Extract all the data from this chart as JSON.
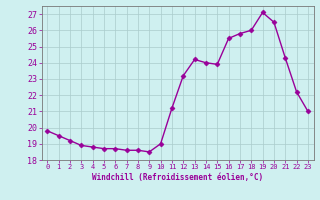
{
  "x": [
    0,
    1,
    2,
    3,
    4,
    5,
    6,
    7,
    8,
    9,
    10,
    11,
    12,
    13,
    14,
    15,
    16,
    17,
    18,
    19,
    20,
    21,
    22,
    23
  ],
  "y": [
    19.8,
    19.5,
    19.2,
    18.9,
    18.8,
    18.7,
    18.7,
    18.6,
    18.6,
    18.5,
    19.0,
    21.2,
    23.2,
    24.2,
    24.0,
    23.9,
    25.5,
    25.8,
    26.0,
    27.1,
    26.5,
    24.3,
    22.2,
    21.0
  ],
  "line_color": "#990099",
  "marker": "D",
  "markersize": 2.5,
  "linewidth": 1.0,
  "bg_color": "#cff0f0",
  "grid_color": "#aacccc",
  "xlabel": "Windchill (Refroidissement éolien,°C)",
  "xlim": [
    -0.5,
    23.5
  ],
  "ylim": [
    18,
    27.5
  ],
  "yticks": [
    18,
    19,
    20,
    21,
    22,
    23,
    24,
    25,
    26,
    27
  ],
  "xticks": [
    0,
    1,
    2,
    3,
    4,
    5,
    6,
    7,
    8,
    9,
    10,
    11,
    12,
    13,
    14,
    15,
    16,
    17,
    18,
    19,
    20,
    21,
    22,
    23
  ],
  "tick_color": "#990099",
  "label_color": "#990099",
  "axis_color": "#777777",
  "xlabel_fontsize": 5.5,
  "ytick_fontsize": 6,
  "xtick_fontsize": 5
}
